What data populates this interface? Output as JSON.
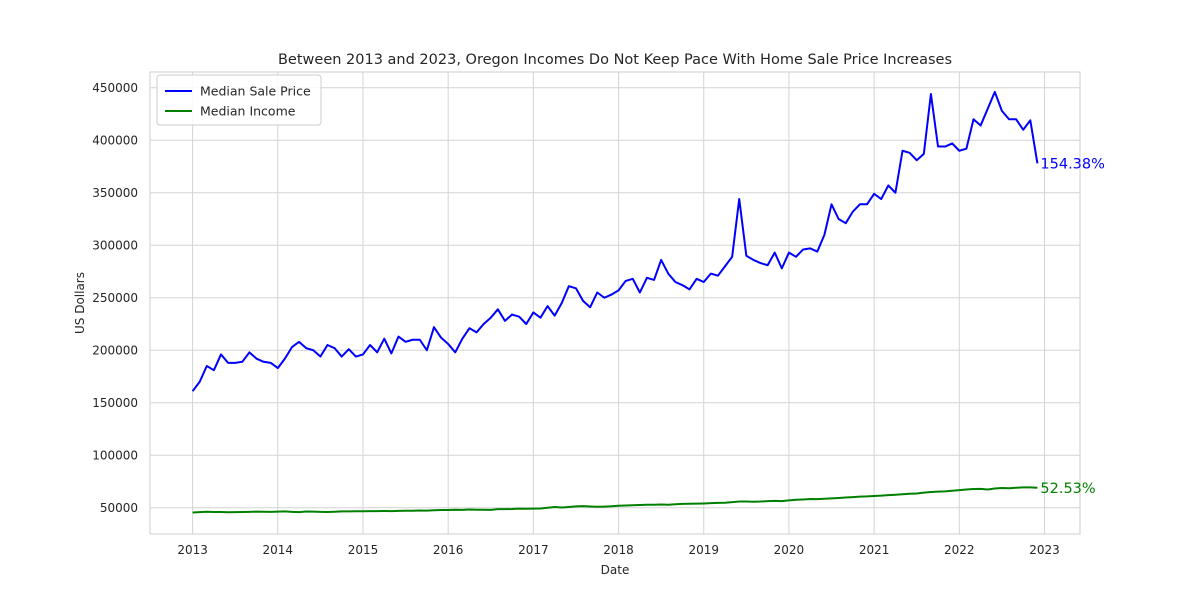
{
  "chart_data": {
    "type": "line",
    "title": "Between 2013 and 2023, Oregon Incomes Do Not Keep Pace With Home Sale Price Increases",
    "xlabel": "Date",
    "ylabel": "US Dollars",
    "xlim": [
      "2012-07-01",
      "2023-06-01"
    ],
    "ylim": [
      25000,
      465000
    ],
    "x_ticks": [
      "2013",
      "2014",
      "2015",
      "2016",
      "2017",
      "2018",
      "2019",
      "2020",
      "2021",
      "2022",
      "2023"
    ],
    "y_ticks": [
      50000,
      100000,
      150000,
      200000,
      250000,
      300000,
      350000,
      400000,
      450000
    ],
    "grid": true,
    "legend_position": "top-left",
    "series": [
      {
        "name": "Median Sale Price",
        "color": "#0000ff",
        "start": "2013-01",
        "frequency": "monthly",
        "values": [
          161000,
          170000,
          185000,
          181000,
          196000,
          188000,
          188000,
          189000,
          198000,
          192000,
          189000,
          188000,
          183000,
          192000,
          203000,
          208000,
          202000,
          200000,
          194000,
          205000,
          202000,
          194000,
          201000,
          194000,
          196000,
          205000,
          198000,
          211000,
          197000,
          213000,
          208000,
          210000,
          210000,
          200000,
          222000,
          212000,
          206000,
          198000,
          211000,
          221000,
          217000,
          225000,
          231000,
          239000,
          228000,
          234000,
          232000,
          225000,
          236000,
          231000,
          242000,
          233000,
          245000,
          261000,
          259000,
          247000,
          241000,
          255000,
          250000,
          253000,
          257000,
          266000,
          268000,
          255000,
          269000,
          267000,
          286000,
          273000,
          265000,
          262000,
          258000,
          268000,
          265000,
          273000,
          271000,
          280000,
          289000,
          344000,
          290000,
          286000,
          283000,
          281000,
          293000,
          278000,
          293000,
          289000,
          296000,
          297000,
          294000,
          310000,
          339000,
          325000,
          321000,
          332000,
          339000,
          339000,
          349000,
          344000,
          357000,
          350000,
          390000,
          388000,
          381000,
          387000,
          444000,
          394000,
          394000,
          397000,
          390000,
          392000,
          420000,
          414000,
          430000,
          446000,
          428000,
          420000,
          420000,
          410000,
          419000,
          378000
        ],
        "annotation": "154.38%"
      },
      {
        "name": "Median Income",
        "color": "#008000",
        "start": "2013-01",
        "frequency": "monthly",
        "values": [
          45500,
          45800,
          46200,
          45900,
          46000,
          45700,
          45800,
          46000,
          46100,
          46300,
          46200,
          46100,
          46300,
          46500,
          46100,
          45800,
          46400,
          46300,
          46100,
          45900,
          46200,
          46500,
          46600,
          46700,
          46700,
          46800,
          46800,
          46900,
          46800,
          47000,
          47200,
          47200,
          47400,
          47300,
          47600,
          47800,
          47800,
          48100,
          48000,
          48300,
          48100,
          48100,
          48000,
          48700,
          48700,
          48800,
          49200,
          49100,
          49200,
          49300,
          50000,
          50700,
          50300,
          50700,
          51300,
          51500,
          51200,
          50900,
          51100,
          51400,
          51900,
          52100,
          52400,
          52600,
          52800,
          52900,
          53100,
          52900,
          53300,
          53700,
          53800,
          53900,
          54100,
          54400,
          54600,
          54800,
          55400,
          55900,
          56000,
          55700,
          55900,
          56300,
          56600,
          56300,
          57000,
          57600,
          57900,
          58300,
          58200,
          58600,
          58900,
          59300,
          59700,
          60100,
          60600,
          60800,
          61200,
          61500,
          62000,
          62400,
          62900,
          63300,
          63600,
          64400,
          65000,
          65400,
          65600,
          66200,
          66800,
          67400,
          67800,
          68000,
          67400,
          68300,
          68800,
          68600,
          69000,
          69400,
          69400,
          69000
        ],
        "annotation": "52.53%"
      }
    ]
  }
}
